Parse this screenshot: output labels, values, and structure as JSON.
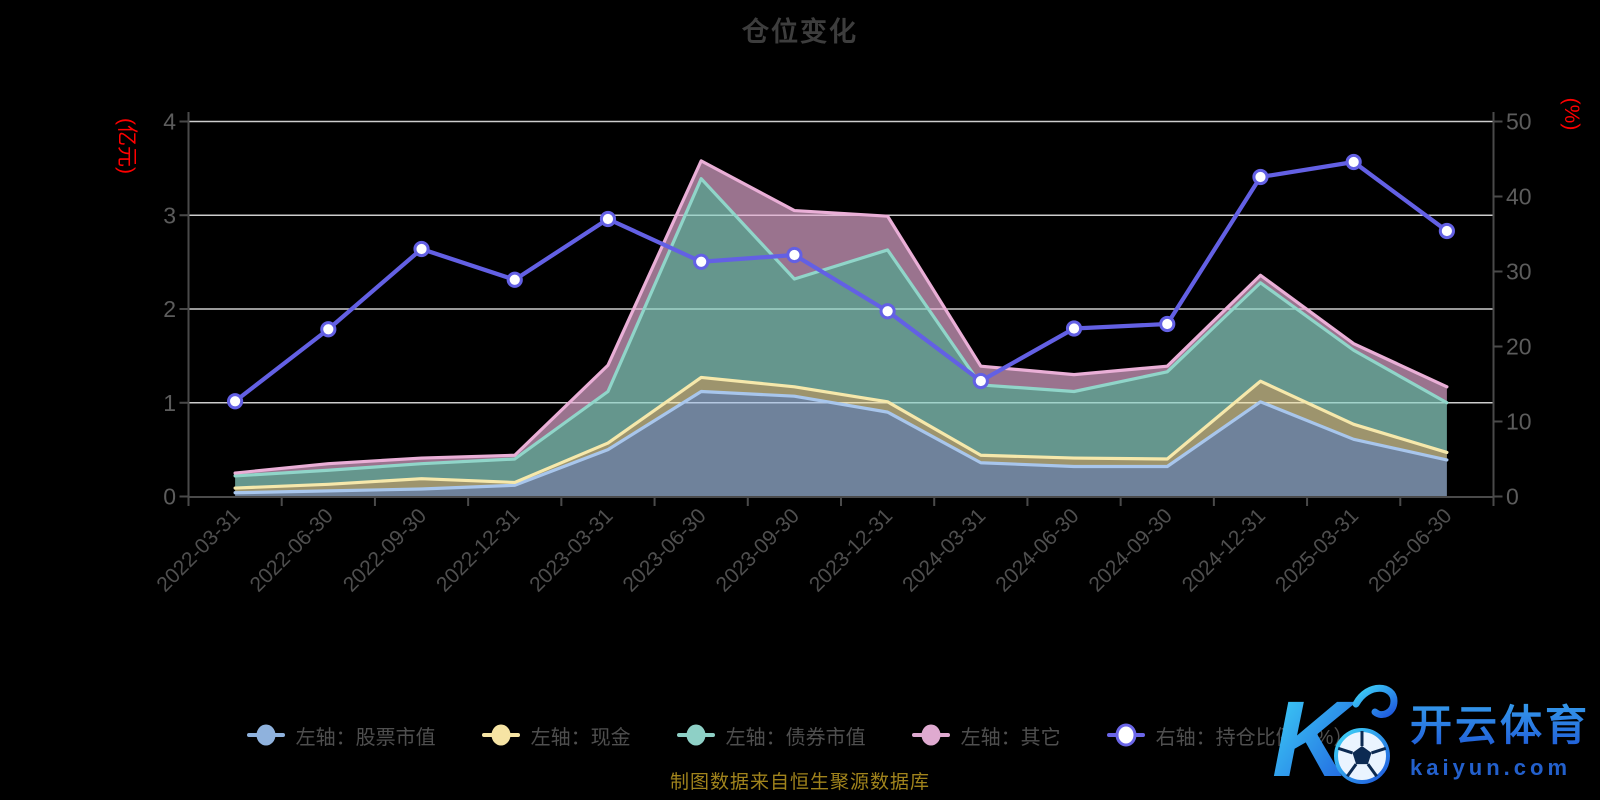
{
  "title": "仓位变化",
  "footer": "制图数据来自恒生聚源数据库",
  "left_axis": {
    "name": "(亿元)",
    "ticks": [
      "0",
      "1",
      "2",
      "3",
      "4"
    ],
    "name_color": "#ff0000"
  },
  "right_axis": {
    "name": "(%)",
    "ticks": [
      "0",
      "10",
      "20",
      "30",
      "40",
      "50"
    ],
    "name_color": "#ff0000"
  },
  "legend": [
    {
      "label": "左轴：股票市值",
      "color": "#8fb2dd",
      "variant": "filled"
    },
    {
      "label": "左轴：现金",
      "color": "#f6e4a4",
      "variant": "filled"
    },
    {
      "label": "左轴：债券市值",
      "color": "#8ed0c6",
      "variant": "filled"
    },
    {
      "label": "左轴：其它",
      "color": "#dfaad0",
      "variant": "filled"
    },
    {
      "label": "右轴：持仓比例（%）",
      "color": "#6b66e8",
      "variant": "hollow"
    }
  ],
  "watermark": {
    "brand": "开云体育",
    "domain": "kaiyun.com",
    "logo_letter": "K"
  },
  "chart_data": {
    "type": "area",
    "subtype": "stacked-area-with-line",
    "grid": true,
    "legend_position": "bottom",
    "categories": [
      "2022-03-31",
      "2022-06-30",
      "2022-09-30",
      "2022-12-31",
      "2023-03-31",
      "2023-06-30",
      "2023-09-30",
      "2023-12-31",
      "2024-03-31",
      "2024-06-30",
      "2024-09-30",
      "2024-12-31",
      "2025-03-31",
      "2025-06-30"
    ],
    "left_ylabel": "(亿元)",
    "right_ylabel": "(%)",
    "left_ylim": [
      0,
      4
    ],
    "right_ylim": [
      0,
      50
    ],
    "series": [
      {
        "name": "左轴：股票市值",
        "axis": "left",
        "kind": "stacked-area",
        "border": "#a8c6ec",
        "fill": "rgba(168,198,236,0.66)",
        "values": [
          0.04,
          0.06,
          0.08,
          0.12,
          0.5,
          1.12,
          1.07,
          0.9,
          0.36,
          0.32,
          0.32,
          1.01,
          0.61,
          0.39
        ]
      },
      {
        "name": "左轴：现金",
        "axis": "left",
        "kind": "stacked-area",
        "border": "#f6e8ab",
        "fill": "rgba(246,232,171,0.64)",
        "values": [
          0.05,
          0.07,
          0.11,
          0.03,
          0.07,
          0.15,
          0.1,
          0.11,
          0.08,
          0.09,
          0.08,
          0.22,
          0.16,
          0.08
        ]
      },
      {
        "name": "左轴：债券市值",
        "axis": "left",
        "kind": "stacked-area",
        "border": "#90d5c9",
        "fill": "rgba(144,213,201,0.70)",
        "values": [
          0.13,
          0.15,
          0.16,
          0.25,
          0.55,
          2.12,
          1.15,
          1.62,
          0.75,
          0.71,
          0.93,
          1.05,
          0.79,
          0.53
        ]
      },
      {
        "name": "左轴：其它",
        "axis": "left",
        "kind": "stacked-area",
        "border": "#eaafd7",
        "fill": "rgba(234,175,215,0.66)",
        "values": [
          0.03,
          0.07,
          0.06,
          0.04,
          0.28,
          0.19,
          0.73,
          0.36,
          0.2,
          0.18,
          0.06,
          0.08,
          0.07,
          0.17
        ]
      },
      {
        "name": "右轴：持仓比例（%）",
        "axis": "right",
        "kind": "line",
        "color": "#6360e4",
        "marker": "circle-hollow",
        "values": [
          12.7,
          22.3,
          33.0,
          28.9,
          37.0,
          31.3,
          32.2,
          24.7,
          15.4,
          22.4,
          23.0,
          42.6,
          44.6,
          35.4
        ]
      }
    ]
  }
}
